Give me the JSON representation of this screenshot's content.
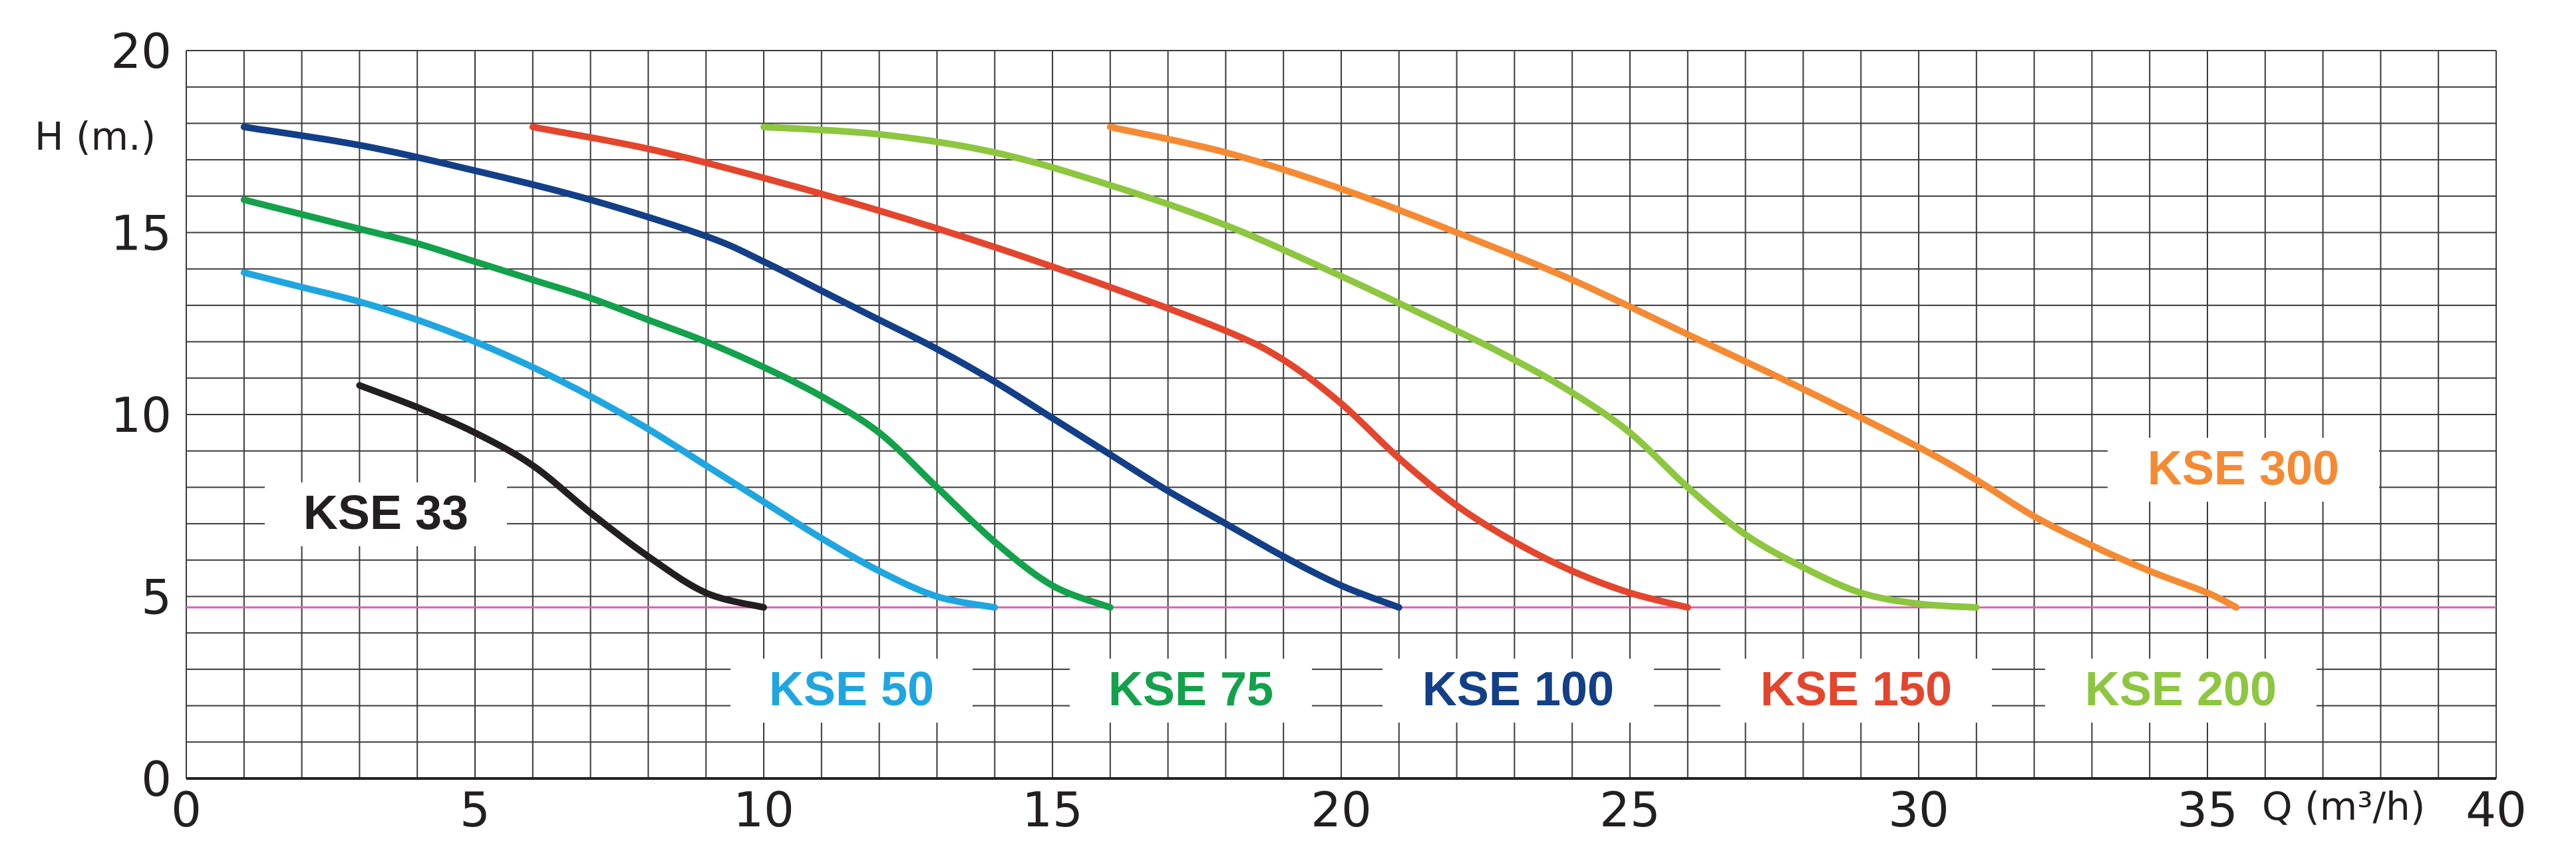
{
  "chart_data": {
    "type": "line",
    "xlabel": "Q (m³/h)",
    "ylabel": "H (m.)",
    "xlim": [
      0,
      40
    ],
    "ylim": [
      0,
      20
    ],
    "x_ticks": [
      "0",
      "5",
      "10",
      "15",
      "20",
      "25",
      "30",
      "35",
      "40"
    ],
    "y_ticks": [
      "0",
      "5",
      "10",
      "15",
      "20"
    ],
    "grid": true,
    "reference_line": {
      "y": 4.7,
      "color": "#e05fb0"
    },
    "series": [
      {
        "name": "KSE 33",
        "color": "#231f20",
        "x": [
          3,
          4,
          5,
          6,
          7,
          8,
          9,
          10
        ],
        "y": [
          10.8,
          10.2,
          9.5,
          8.6,
          7.3,
          6.1,
          5.1,
          4.7
        ]
      },
      {
        "name": "KSE 50",
        "color": "#1fa6e0",
        "x": [
          1,
          2,
          3,
          4,
          5,
          6,
          7,
          8,
          9,
          10,
          11,
          12,
          13,
          14
        ],
        "y": [
          13.9,
          13.5,
          13.1,
          12.6,
          12.0,
          11.3,
          10.5,
          9.6,
          8.6,
          7.6,
          6.6,
          5.7,
          5.0,
          4.7
        ]
      },
      {
        "name": "KSE 75",
        "color": "#13a14b",
        "x": [
          1,
          2,
          3,
          4,
          5,
          6,
          7,
          8,
          9,
          10,
          11,
          12,
          13,
          14,
          15,
          16
        ],
        "y": [
          15.9,
          15.5,
          15.1,
          14.7,
          14.2,
          13.7,
          13.2,
          12.6,
          12.0,
          11.3,
          10.5,
          9.5,
          8.0,
          6.5,
          5.3,
          4.7
        ]
      },
      {
        "name": "KSE 100",
        "color": "#123f87",
        "x": [
          1,
          3,
          5,
          7,
          9,
          10,
          11,
          12,
          13,
          14,
          15,
          16,
          17,
          18,
          19,
          20,
          21
        ],
        "y": [
          17.9,
          17.4,
          16.7,
          15.9,
          14.9,
          14.2,
          13.4,
          12.6,
          11.8,
          10.9,
          9.9,
          8.9,
          7.9,
          7.0,
          6.1,
          5.3,
          4.7
        ]
      },
      {
        "name": "KSE 150",
        "color": "#e4452d",
        "x": [
          6,
          8,
          10,
          12,
          14,
          16,
          18,
          19,
          20,
          21,
          22,
          23,
          24,
          25,
          26
        ],
        "y": [
          17.9,
          17.3,
          16.5,
          15.6,
          14.6,
          13.5,
          12.3,
          11.5,
          10.3,
          8.8,
          7.5,
          6.5,
          5.7,
          5.1,
          4.7
        ]
      },
      {
        "name": "KSE 200",
        "color": "#8dc63f",
        "x": [
          10,
          12,
          14,
          16,
          18,
          20,
          22,
          23,
          24,
          25,
          26,
          27,
          28,
          29,
          30,
          31
        ],
        "y": [
          17.9,
          17.7,
          17.2,
          16.3,
          15.2,
          13.8,
          12.3,
          11.5,
          10.6,
          9.5,
          8.0,
          6.7,
          5.8,
          5.1,
          4.8,
          4.7
        ]
      },
      {
        "name": "KSE 300",
        "color": "#f58a33",
        "x": [
          16,
          18,
          20,
          22,
          24,
          26,
          28,
          30,
          31,
          32,
          33,
          34,
          35,
          35.5
        ],
        "y": [
          17.9,
          17.2,
          16.2,
          15.0,
          13.7,
          12.2,
          10.7,
          9.1,
          8.2,
          7.2,
          6.4,
          5.7,
          5.1,
          4.7
        ]
      }
    ]
  }
}
